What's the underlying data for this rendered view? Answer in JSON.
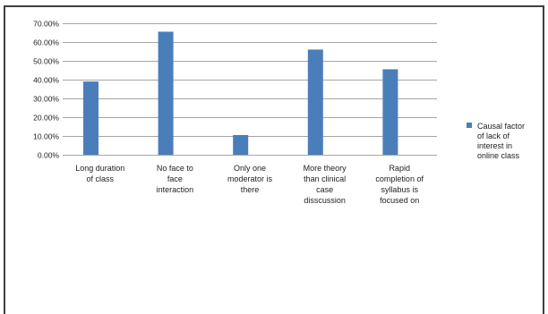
{
  "chart_data": {
    "type": "bar",
    "categories": [
      [
        "Long duration",
        "of class"
      ],
      [
        "No face to",
        "face",
        "interaction"
      ],
      [
        "Only one",
        "moderator is",
        "there"
      ],
      [
        "More theory",
        "than clinical",
        "case",
        "disscussion"
      ],
      [
        "Rapid",
        "completion of",
        "syllabus is",
        "focused on"
      ]
    ],
    "series": [
      {
        "name": "Causal factor of lack of interest in online class",
        "name_lines": [
          "Causal factor",
          "of lack of",
          "interest in",
          "online class"
        ],
        "values": [
          39.0,
          65.5,
          10.5,
          56.0,
          45.5
        ],
        "color": "#4a7ebb"
      }
    ],
    "yticks": [
      "0.00%",
      "10.00%",
      "20.00%",
      "30.00%",
      "40.00%",
      "50.00%",
      "60.00%",
      "70.00%"
    ],
    "ylim": [
      0,
      70
    ],
    "ystep": 10,
    "grid": true,
    "gridColor": "#a6a6a6",
    "legend_position": "right"
  }
}
